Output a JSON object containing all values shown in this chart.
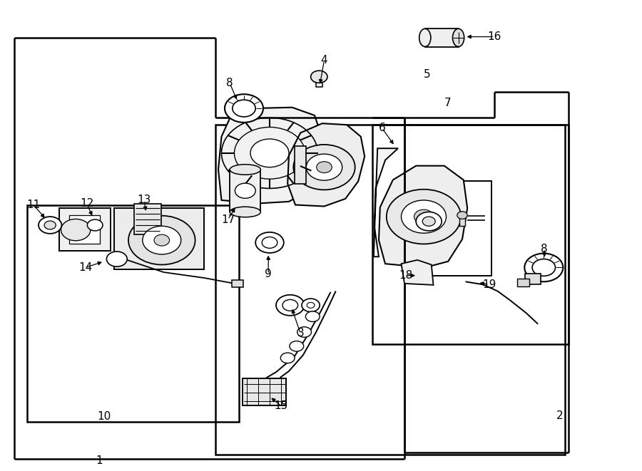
{
  "fig_width": 9.0,
  "fig_height": 6.61,
  "dpi": 100,
  "bg_color": "#ffffff",
  "line_color": "#000000",
  "text_color": "#000000",
  "font_size_labels": 11
}
